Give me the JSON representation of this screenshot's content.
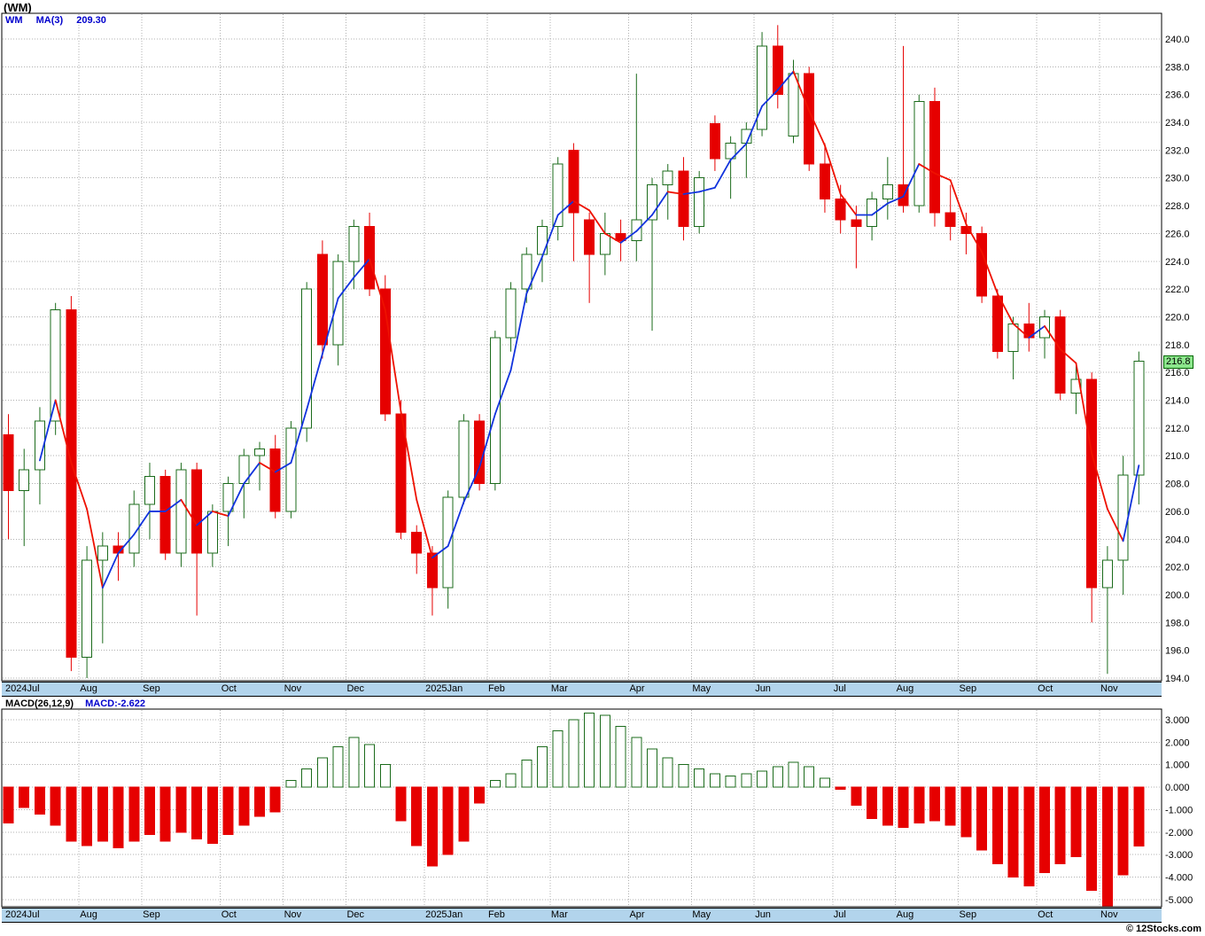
{
  "header": {
    "title": "(WM)"
  },
  "price_legend": {
    "symbol": "WM",
    "indicator": "MA(3)",
    "ma_value": "209.30"
  },
  "macd_legend": {
    "label": "MACD(26,12,9)",
    "value": "MACD:-2.622"
  },
  "price_tag": "216.8",
  "watermark": "© 12Stocks.com",
  "colors": {
    "up": "#1b6b1b",
    "up_fill": "#ffffff",
    "down": "#e60000",
    "ma_up": "#1133dd",
    "ma_down": "#ee1100",
    "axis_strip": "#b2d4ec",
    "tag_bg": "#8ce68c",
    "tag_border": "#006600",
    "legend_blue": "#0000cc",
    "grid": "#b0b0b0"
  },
  "months": [
    {
      "label": "2024Jul",
      "start": 0
    },
    {
      "label": "Aug",
      "start": 5
    },
    {
      "label": "Sep",
      "start": 9
    },
    {
      "label": "Oct",
      "start": 14
    },
    {
      "label": "Nov",
      "start": 18
    },
    {
      "label": "Dec",
      "start": 22
    },
    {
      "label": "2025Jan",
      "start": 27
    },
    {
      "label": "Feb",
      "start": 31
    },
    {
      "label": "Mar",
      "start": 35
    },
    {
      "label": "Apr",
      "start": 40
    },
    {
      "label": "May",
      "start": 44
    },
    {
      "label": "Jun",
      "start": 48
    },
    {
      "label": "Jul",
      "start": 53
    },
    {
      "label": "Aug",
      "start": 57
    },
    {
      "label": "Sep",
      "start": 61
    },
    {
      "label": "Oct",
      "start": 66
    },
    {
      "label": "Nov",
      "start": 70
    }
  ],
  "chart_data": [
    {
      "type": "candlestick",
      "title": "WM weekly candlesticks with MA(3)",
      "ylabel": "Price",
      "ylim": [
        194,
        240
      ],
      "y_tick_step": 2,
      "grid": true,
      "legend_position": "top-left",
      "x_labels": [
        "2024Jul",
        "Aug",
        "Sep",
        "Oct",
        "Nov",
        "Dec",
        "2025Jan",
        "Feb",
        "Mar",
        "Apr",
        "May",
        "Jun",
        "Jul",
        "Aug",
        "Sep",
        "Oct",
        "Nov"
      ],
      "ma_period": 3,
      "ma_last": 209.3,
      "last_close": 216.8,
      "ohlc": [
        [
          211.5,
          213.0,
          204.0,
          207.5
        ],
        [
          207.5,
          210.5,
          203.5,
          209.0
        ],
        [
          209.0,
          213.5,
          206.5,
          212.5
        ],
        [
          212.5,
          221.0,
          211.5,
          220.5
        ],
        [
          220.5,
          221.5,
          194.5,
          195.5
        ],
        [
          195.5,
          203.5,
          194.0,
          202.5
        ],
        [
          202.5,
          204.5,
          196.5,
          203.5
        ],
        [
          203.5,
          204.5,
          201.0,
          203.0
        ],
        [
          203.0,
          207.5,
          202.0,
          206.5
        ],
        [
          206.5,
          209.5,
          204.0,
          208.5
        ],
        [
          208.5,
          209.0,
          202.5,
          203.0
        ],
        [
          203.0,
          209.5,
          202.0,
          209.0
        ],
        [
          209.0,
          209.5,
          198.5,
          203.0
        ],
        [
          203.0,
          206.5,
          202.0,
          206.0
        ],
        [
          206.0,
          208.5,
          203.5,
          208.0
        ],
        [
          208.0,
          210.5,
          205.5,
          210.0
        ],
        [
          210.0,
          211.0,
          207.5,
          210.5
        ],
        [
          210.5,
          211.5,
          205.5,
          206.0
        ],
        [
          206.0,
          212.5,
          205.5,
          212.0
        ],
        [
          212.0,
          222.5,
          211.0,
          222.0
        ],
        [
          224.5,
          225.5,
          217.0,
          218.0
        ],
        [
          218.0,
          224.5,
          216.5,
          224.0
        ],
        [
          224.0,
          227.0,
          222.0,
          226.5
        ],
        [
          226.5,
          227.5,
          221.5,
          222.0
        ],
        [
          222.0,
          223.0,
          212.5,
          213.0
        ],
        [
          213.0,
          214.0,
          204.0,
          204.5
        ],
        [
          204.5,
          205.0,
          201.5,
          203.0
        ],
        [
          203.0,
          203.5,
          198.5,
          200.5
        ],
        [
          200.5,
          207.5,
          199.0,
          207.0
        ],
        [
          207.0,
          213.0,
          206.5,
          212.5
        ],
        [
          212.5,
          213.0,
          207.5,
          208.0
        ],
        [
          208.0,
          219.0,
          207.5,
          218.5
        ],
        [
          218.5,
          222.5,
          217.5,
          222.0
        ],
        [
          222.0,
          225.0,
          221.0,
          224.5
        ],
        [
          224.5,
          227.0,
          222.5,
          226.5
        ],
        [
          226.5,
          231.5,
          225.5,
          231.0
        ],
        [
          232.0,
          232.5,
          224.0,
          227.5
        ],
        [
          227.0,
          227.5,
          221.0,
          224.5
        ],
        [
          224.5,
          227.5,
          223.0,
          226.0
        ],
        [
          226.0,
          227.0,
          224.0,
          225.5
        ],
        [
          225.5,
          237.5,
          224.0,
          227.0
        ],
        [
          227.0,
          230.0,
          219.0,
          229.5
        ],
        [
          229.5,
          231.0,
          227.0,
          230.5
        ],
        [
          230.5,
          231.5,
          225.5,
          226.5
        ],
        [
          226.5,
          230.5,
          226.0,
          230.0
        ],
        [
          233.9,
          234.5,
          230.5,
          231.4
        ],
        [
          231.4,
          233.0,
          228.5,
          232.5
        ],
        [
          232.5,
          234.0,
          230.0,
          233.5
        ],
        [
          233.5,
          240.5,
          233.0,
          239.5
        ],
        [
          239.5,
          241.0,
          235.0,
          236.0
        ],
        [
          233.0,
          238.5,
          232.5,
          237.5
        ],
        [
          237.5,
          238.0,
          230.5,
          231.0
        ],
        [
          231.0,
          232.5,
          227.5,
          228.5
        ],
        [
          228.5,
          229.5,
          226.0,
          227.0
        ],
        [
          227.0,
          228.0,
          223.5,
          226.5
        ],
        [
          226.5,
          229.0,
          225.5,
          228.5
        ],
        [
          228.5,
          231.5,
          227.0,
          229.5
        ],
        [
          229.5,
          239.5,
          227.5,
          228.0
        ],
        [
          228.0,
          236.0,
          227.5,
          235.5
        ],
        [
          235.5,
          236.5,
          226.5,
          227.5
        ],
        [
          227.5,
          229.5,
          225.5,
          226.5
        ],
        [
          226.5,
          227.5,
          224.5,
          226.0
        ],
        [
          226.0,
          226.5,
          221.0,
          221.5
        ],
        [
          221.5,
          222.0,
          217.0,
          217.5
        ],
        [
          217.5,
          220.0,
          215.5,
          219.5
        ],
        [
          219.5,
          221.0,
          217.5,
          218.5
        ],
        [
          218.5,
          220.5,
          217.0,
          220.0
        ],
        [
          220.0,
          220.5,
          214.0,
          214.5
        ],
        [
          214.5,
          216.5,
          213.0,
          215.5
        ],
        [
          215.5,
          216.0,
          198.0,
          200.5
        ],
        [
          200.5,
          203.5,
          194.3,
          202.5
        ],
        [
          202.5,
          210.0,
          200.0,
          208.6
        ],
        [
          208.6,
          217.5,
          206.5,
          216.8
        ]
      ]
    },
    {
      "type": "bar",
      "title": "MACD(26,12,9) histogram",
      "ylim": [
        -5,
        3
      ],
      "y_tick_step": 1,
      "grid": true,
      "last": -2.622,
      "values": [
        -1.6,
        -0.9,
        -1.2,
        -1.7,
        -2.4,
        -2.6,
        -2.4,
        -2.7,
        -2.4,
        -2.1,
        -2.4,
        -2.0,
        -2.3,
        -2.5,
        -2.1,
        -1.7,
        -1.3,
        -1.1,
        0.3,
        0.8,
        1.3,
        1.8,
        2.2,
        1.9,
        1.0,
        -1.5,
        -2.6,
        -3.5,
        -3.0,
        -2.4,
        -0.7,
        0.3,
        0.6,
        1.2,
        1.8,
        2.5,
        3.0,
        3.3,
        3.2,
        2.7,
        2.2,
        1.7,
        1.3,
        1.0,
        0.8,
        0.6,
        0.5,
        0.6,
        0.7,
        0.9,
        1.1,
        0.9,
        0.4,
        -0.1,
        -0.8,
        -1.4,
        -1.7,
        -1.8,
        -1.6,
        -1.5,
        -1.7,
        -2.2,
        -2.8,
        -3.4,
        -4.0,
        -4.4,
        -3.8,
        -3.4,
        -3.1,
        -4.6,
        -5.3,
        -3.9,
        -2.622
      ]
    }
  ]
}
